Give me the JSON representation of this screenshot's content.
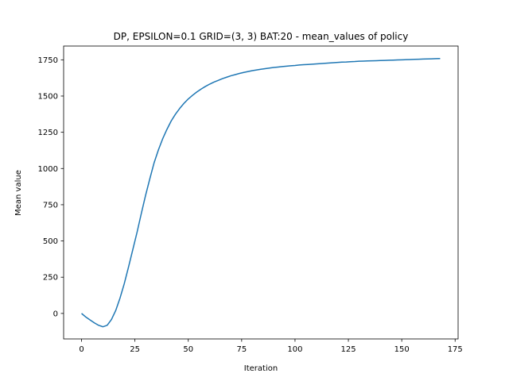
{
  "chart_data": {
    "type": "line",
    "title": "DP, EPSILON=0.1 GRID=(3, 3)   BAT:20 - mean_values of policy",
    "xlabel": "Iteration",
    "ylabel": "Mean value",
    "xlim": [
      -8.4,
      176.4
    ],
    "ylim": [
      -176,
      1845
    ],
    "xticks": [
      0,
      25,
      50,
      75,
      100,
      125,
      150,
      175
    ],
    "yticks": [
      0,
      250,
      500,
      750,
      1000,
      1250,
      1500,
      1750
    ],
    "grid": false,
    "legend": "none",
    "series": [
      {
        "color": "#1f77b4",
        "x": [
          0,
          2,
          4,
          6,
          8,
          10,
          12,
          14,
          16,
          18,
          20,
          22,
          24,
          26,
          28,
          30,
          32,
          34,
          36,
          38,
          40,
          42,
          44,
          46,
          48,
          50,
          52,
          54,
          56,
          58,
          60,
          62,
          64,
          66,
          68,
          70,
          72,
          74,
          76,
          78,
          80,
          82,
          84,
          86,
          88,
          90,
          92,
          94,
          96,
          98,
          100,
          102,
          104,
          106,
          108,
          110,
          112,
          114,
          116,
          118,
          120,
          122,
          124,
          126,
          128,
          130,
          132,
          134,
          136,
          138,
          140,
          142,
          144,
          146,
          148,
          150,
          152,
          154,
          156,
          158,
          160,
          162,
          164,
          166,
          168
        ],
        "y": [
          0,
          -25,
          -45,
          -65,
          -82,
          -92,
          -82,
          -42,
          20,
          105,
          205,
          320,
          440,
          560,
          690,
          815,
          930,
          1040,
          1128,
          1205,
          1270,
          1328,
          1375,
          1415,
          1450,
          1480,
          1505,
          1528,
          1548,
          1566,
          1582,
          1596,
          1608,
          1620,
          1630,
          1640,
          1648,
          1656,
          1663,
          1669,
          1675,
          1680,
          1685,
          1689,
          1693,
          1697,
          1700,
          1703,
          1706,
          1709,
          1711,
          1714,
          1716,
          1718,
          1720,
          1722,
          1724,
          1726,
          1728,
          1730,
          1732,
          1734,
          1735,
          1737,
          1738,
          1740,
          1741,
          1742,
          1743,
          1744,
          1745,
          1746,
          1747,
          1748,
          1749,
          1750,
          1751,
          1752,
          1753,
          1754,
          1755,
          1756,
          1757,
          1758,
          1759
        ]
      }
    ]
  }
}
